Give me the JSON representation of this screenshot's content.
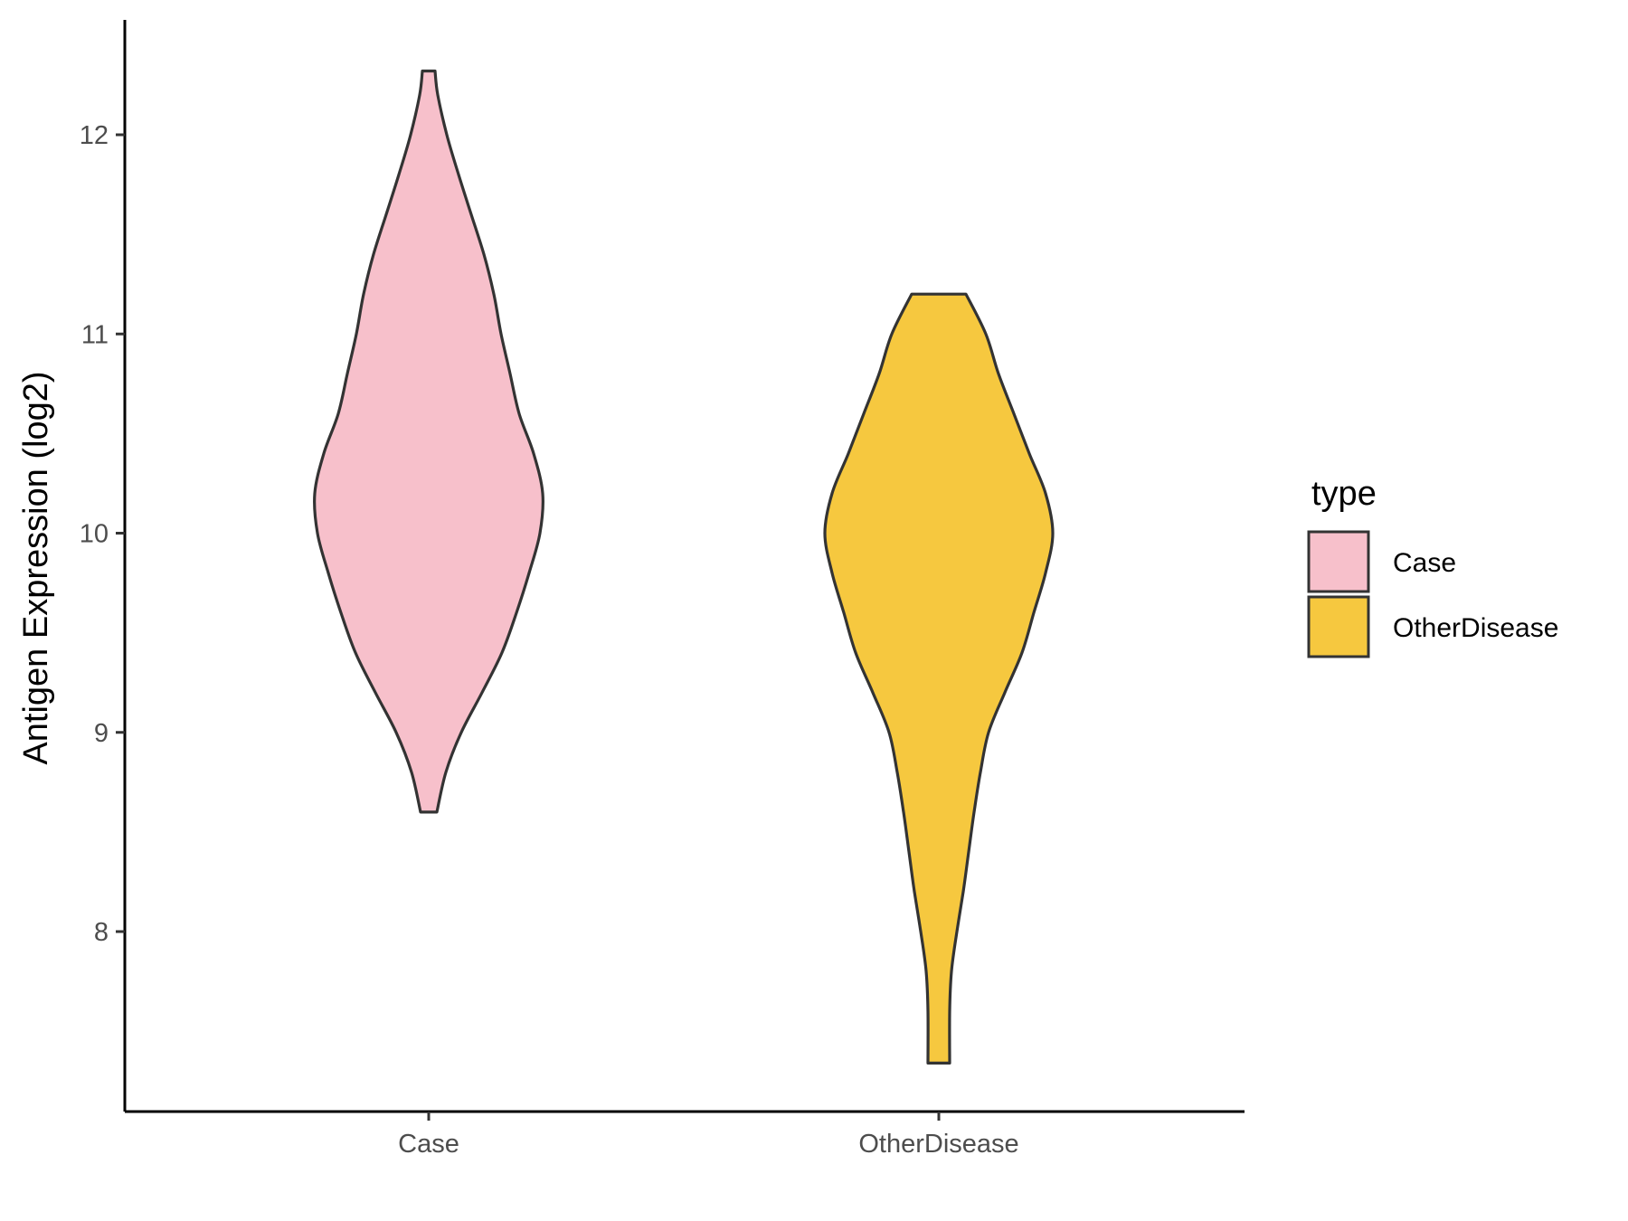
{
  "chart_data": {
    "type": "violin",
    "title": "",
    "xlabel": "",
    "ylabel": "Antigen Expression (log2)",
    "categories": [
      "Case",
      "OtherDisease"
    ],
    "y_ticks": [
      8,
      9,
      10,
      11,
      12
    ],
    "ylim": [
      7.1,
      12.55
    ],
    "grid": false,
    "legend": {
      "title": "type",
      "position": "right",
      "entries": [
        "Case",
        "OtherDisease"
      ]
    },
    "colors": {
      "Case": "#F7C0CB",
      "OtherDisease": "#F6C83F",
      "outline": "#333333",
      "axis": "#000000"
    },
    "series": [
      {
        "name": "Case",
        "range": [
          8.6,
          12.32
        ],
        "density": [
          [
            8.6,
            0.09
          ],
          [
            8.8,
            0.19
          ],
          [
            9.0,
            0.36
          ],
          [
            9.2,
            0.59
          ],
          [
            9.4,
            0.81
          ],
          [
            9.6,
            0.97
          ],
          [
            9.8,
            1.11
          ],
          [
            10.0,
            1.23
          ],
          [
            10.2,
            1.26
          ],
          [
            10.4,
            1.16
          ],
          [
            10.6,
            1.0
          ],
          [
            10.8,
            0.9
          ],
          [
            11.0,
            0.8
          ],
          [
            11.2,
            0.72
          ],
          [
            11.4,
            0.61
          ],
          [
            11.6,
            0.47
          ],
          [
            11.8,
            0.33
          ],
          [
            12.0,
            0.2
          ],
          [
            12.2,
            0.1
          ],
          [
            12.32,
            0.07
          ]
        ]
      },
      {
        "name": "OtherDisease",
        "range": [
          7.34,
          11.2
        ],
        "density": [
          [
            7.34,
            0.12
          ],
          [
            7.6,
            0.12
          ],
          [
            7.8,
            0.14
          ],
          [
            8.0,
            0.2
          ],
          [
            8.2,
            0.27
          ],
          [
            8.4,
            0.33
          ],
          [
            8.6,
            0.39
          ],
          [
            8.8,
            0.46
          ],
          [
            9.0,
            0.55
          ],
          [
            9.2,
            0.73
          ],
          [
            9.4,
            0.92
          ],
          [
            9.6,
            1.05
          ],
          [
            9.8,
            1.18
          ],
          [
            10.0,
            1.26
          ],
          [
            10.2,
            1.18
          ],
          [
            10.4,
            1.0
          ],
          [
            10.6,
            0.83
          ],
          [
            10.8,
            0.66
          ],
          [
            11.0,
            0.52
          ],
          [
            11.2,
            0.3
          ]
        ]
      }
    ]
  }
}
